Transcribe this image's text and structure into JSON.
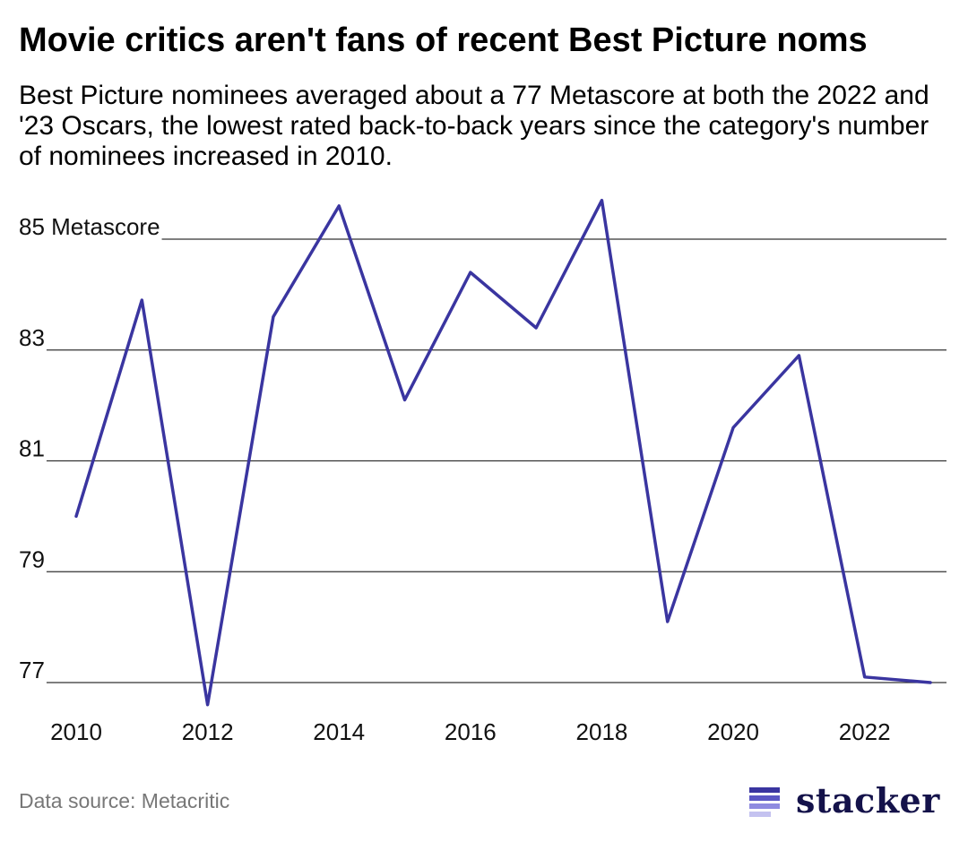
{
  "title": "Movie critics aren't fans of recent Best Picture noms",
  "subtitle": "Best Picture nominees averaged about a 77 Metascore at both the 2022 and '23 Oscars, the lowest rated back-to-back years since the category's number of nominees increased in 2010.",
  "source": "Data source: Metacritic",
  "brand": {
    "name": "stacker",
    "text_color": "#14124a",
    "mark_colors": [
      "#3a35a0",
      "#5b57c4",
      "#8f8be0",
      "#c4c2f0"
    ]
  },
  "chart_data": {
    "type": "line",
    "x": [
      2010,
      2011,
      2012,
      2013,
      2014,
      2015,
      2016,
      2017,
      2018,
      2019,
      2020,
      2021,
      2022,
      2023
    ],
    "series": [
      {
        "values": [
          80.0,
          83.9,
          76.6,
          83.6,
          85.6,
          82.1,
          84.4,
          83.4,
          85.7,
          78.1,
          81.6,
          82.9,
          77.1,
          77.0
        ]
      }
    ],
    "yticks": [
      77,
      79,
      81,
      83,
      85
    ],
    "ytick_labels": [
      "77",
      "79",
      "81",
      "83",
      "85 Metascore"
    ],
    "xticks": [
      2010,
      2012,
      2014,
      2016,
      2018,
      2020,
      2022
    ],
    "xtick_labels": [
      "2010",
      "2012",
      "2014",
      "2016",
      "2018",
      "2020",
      "2022"
    ],
    "ylim": [
      77,
      85
    ],
    "xlim": [
      2010,
      2023
    ],
    "grid": true,
    "line_color": "#3a35a0"
  }
}
